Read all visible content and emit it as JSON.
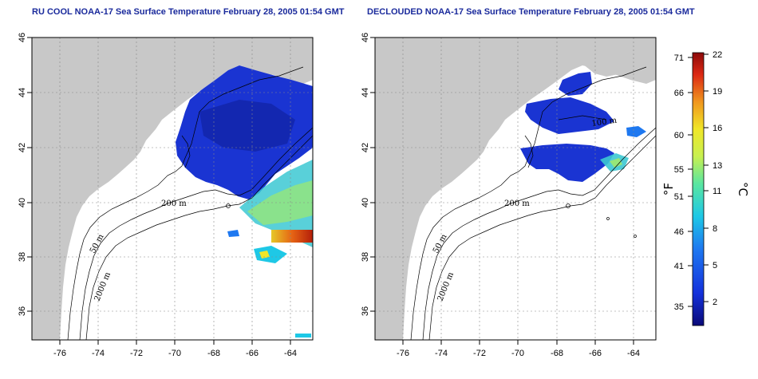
{
  "titles": {
    "left": "RU COOL NOAA-17 Sea Surface Temperature February 28, 2005 01:54 GMT",
    "right": "DECLOUDED NOAA-17 Sea Surface Temperature February 28, 2005 01:54 GMT"
  },
  "axes": {
    "x_ticks": [
      "-76",
      "-74",
      "-72",
      "-70",
      "-68",
      "-66",
      "-64"
    ],
    "y_ticks": [
      "36",
      "38",
      "40",
      "42",
      "44",
      "46"
    ]
  },
  "contour_labels": {
    "left": [
      "50 m",
      "200 m",
      "2000 m"
    ],
    "right": [
      "50 m",
      "200 m",
      "2000 m",
      "100 m"
    ]
  },
  "colorbar": {
    "fahrenheit_ticks": [
      "71",
      "66",
      "60",
      "55",
      "51",
      "46",
      "41",
      "35"
    ],
    "celsius_ticks": [
      "22",
      "19",
      "16",
      "13",
      "11",
      "8",
      "5",
      "2"
    ],
    "unit_left": "°F",
    "unit_right": "°C"
  },
  "colors": {
    "land": "#c8c8c8",
    "ocean": "#ffffff",
    "cold_water": "#1428c8",
    "title": "#1a2a9c"
  }
}
